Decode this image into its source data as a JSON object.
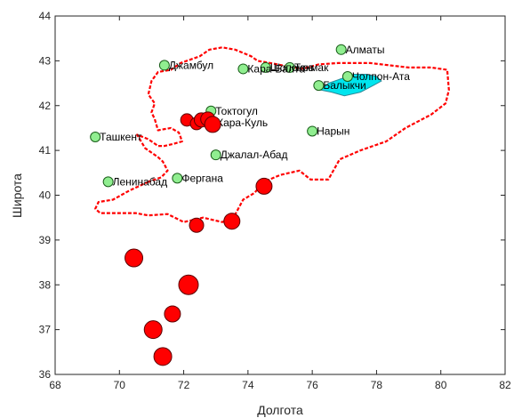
{
  "chart_data": {
    "type": "scatter",
    "xlabel": "Долгота",
    "ylabel": "Широта",
    "xlim": [
      68,
      82
    ],
    "ylim": [
      36,
      44
    ],
    "xticks": [
      68,
      70,
      72,
      74,
      76,
      78,
      80,
      82
    ],
    "yticks": [
      36,
      37,
      38,
      39,
      40,
      41,
      42,
      43,
      44
    ],
    "grid": false,
    "colors": {
      "border": "#ff0000",
      "city_fill": "#90ee90",
      "quake_fill": "#ff0000",
      "lake_fill": "#00e5ee"
    },
    "cities": [
      {
        "name": "Алматы",
        "x": 76.9,
        "y": 43.25
      },
      {
        "name": "Джамбул",
        "x": 71.4,
        "y": 42.9
      },
      {
        "name": "Кара-Балта",
        "x": 73.85,
        "y": 42.82
      },
      {
        "name": "Шопоков",
        "x": 74.55,
        "y": 42.85
      },
      {
        "name": "Токмак",
        "x": 75.3,
        "y": 42.85
      },
      {
        "name": "Чолпон-Ата",
        "x": 77.1,
        "y": 42.65
      },
      {
        "name": "Балыкчи",
        "x": 76.2,
        "y": 42.45
      },
      {
        "name": "Токтогул",
        "x": 72.85,
        "y": 41.88
      },
      {
        "name": "Кара-Куль",
        "x": 72.9,
        "y": 41.62
      },
      {
        "name": "Нарын",
        "x": 76.0,
        "y": 41.43
      },
      {
        "name": "Ташкент",
        "x": 69.25,
        "y": 41.3
      },
      {
        "name": "Джалал-Абад",
        "x": 73.0,
        "y": 40.9
      },
      {
        "name": "Фергана",
        "x": 71.8,
        "y": 40.38
      },
      {
        "name": "Ленинабад",
        "x": 69.65,
        "y": 40.3
      }
    ],
    "earthquakes": [
      {
        "x": 72.1,
        "y": 41.68,
        "size": 7
      },
      {
        "x": 72.4,
        "y": 41.6,
        "size": 7
      },
      {
        "x": 72.55,
        "y": 41.68,
        "size": 8
      },
      {
        "x": 72.75,
        "y": 41.7,
        "size": 8
      },
      {
        "x": 72.9,
        "y": 41.58,
        "size": 9
      },
      {
        "x": 74.5,
        "y": 40.2,
        "size": 9
      },
      {
        "x": 73.5,
        "y": 39.42,
        "size": 9
      },
      {
        "x": 72.4,
        "y": 39.33,
        "size": 8
      },
      {
        "x": 70.45,
        "y": 38.6,
        "size": 10
      },
      {
        "x": 72.15,
        "y": 38.0,
        "size": 11
      },
      {
        "x": 71.65,
        "y": 37.35,
        "size": 9
      },
      {
        "x": 71.05,
        "y": 37.0,
        "size": 10
      },
      {
        "x": 71.35,
        "y": 36.4,
        "size": 10
      }
    ],
    "border": [
      [
        70.9,
        40.3
      ],
      [
        70.3,
        40.1
      ],
      [
        69.8,
        39.9
      ],
      [
        69.35,
        39.85
      ],
      [
        69.25,
        39.7
      ],
      [
        69.4,
        39.6
      ],
      [
        69.9,
        39.6
      ],
      [
        70.5,
        39.6
      ],
      [
        70.9,
        39.55
      ],
      [
        71.5,
        39.58
      ],
      [
        72.0,
        39.4
      ],
      [
        72.6,
        39.5
      ],
      [
        73.2,
        39.4
      ],
      [
        73.55,
        39.5
      ],
      [
        73.85,
        39.9
      ],
      [
        74.2,
        40.05
      ],
      [
        74.5,
        40.3
      ],
      [
        75.0,
        40.45
      ],
      [
        75.6,
        40.55
      ],
      [
        75.95,
        40.35
      ],
      [
        76.5,
        40.35
      ],
      [
        76.85,
        40.8
      ],
      [
        77.5,
        41.0
      ],
      [
        78.3,
        41.2
      ],
      [
        78.9,
        41.5
      ],
      [
        79.7,
        41.8
      ],
      [
        80.15,
        42.05
      ],
      [
        80.25,
        42.35
      ],
      [
        80.2,
        42.8
      ],
      [
        79.7,
        42.85
      ],
      [
        79.0,
        42.85
      ],
      [
        78.4,
        42.9
      ],
      [
        77.8,
        42.95
      ],
      [
        77.3,
        42.95
      ],
      [
        76.8,
        42.95
      ],
      [
        76.2,
        42.92
      ],
      [
        75.7,
        42.82
      ],
      [
        75.2,
        42.88
      ],
      [
        74.7,
        42.95
      ],
      [
        74.3,
        43.0
      ],
      [
        74.1,
        43.1
      ],
      [
        73.6,
        43.25
      ],
      [
        73.2,
        43.3
      ],
      [
        72.8,
        43.25
      ],
      [
        72.5,
        43.1
      ],
      [
        71.9,
        42.95
      ],
      [
        71.6,
        42.8
      ],
      [
        71.2,
        42.75
      ],
      [
        71.0,
        42.55
      ],
      [
        70.9,
        42.25
      ],
      [
        71.1,
        42.05
      ],
      [
        71.0,
        41.85
      ],
      [
        71.1,
        41.7
      ],
      [
        71.2,
        41.45
      ],
      [
        71.6,
        41.5
      ],
      [
        71.85,
        41.4
      ],
      [
        71.95,
        41.2
      ],
      [
        71.7,
        41.15
      ],
      [
        71.4,
        41.1
      ],
      [
        71.2,
        41.1
      ],
      [
        70.9,
        41.25
      ],
      [
        70.55,
        41.35
      ],
      [
        70.8,
        41.05
      ],
      [
        71.2,
        40.85
      ],
      [
        71.35,
        40.75
      ],
      [
        71.5,
        40.55
      ],
      [
        71.3,
        40.4
      ],
      [
        70.9,
        40.3
      ]
    ],
    "lake": [
      [
        76.25,
        42.35
      ],
      [
        76.6,
        42.3
      ],
      [
        77.0,
        42.22
      ],
      [
        77.5,
        42.3
      ],
      [
        77.9,
        42.45
      ],
      [
        78.15,
        42.55
      ],
      [
        78.0,
        42.65
      ],
      [
        77.7,
        42.7
      ],
      [
        77.3,
        42.7
      ],
      [
        76.9,
        42.6
      ],
      [
        76.5,
        42.5
      ],
      [
        76.25,
        42.35
      ]
    ]
  }
}
